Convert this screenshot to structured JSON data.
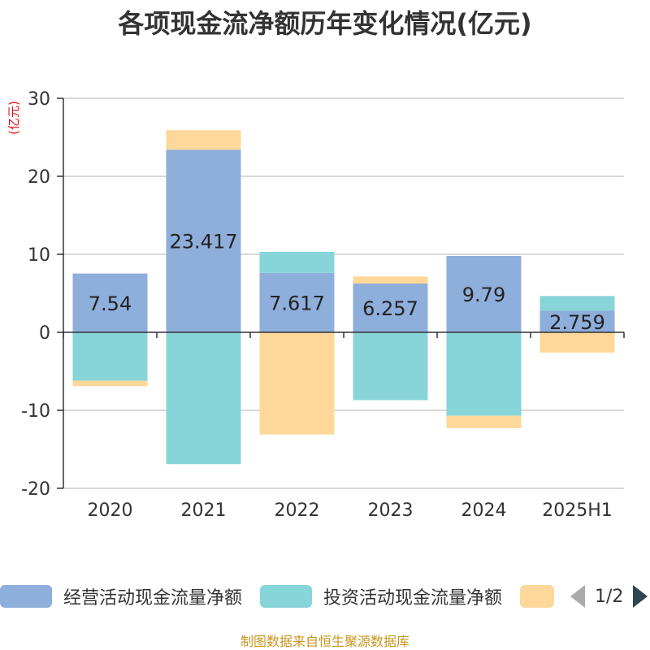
{
  "page_title": "各项现金流净额历年变化情况(亿元)",
  "chart_data": {
    "type": "bar",
    "stacked": true,
    "title": "各项现金流净额历年变化情况(亿元)",
    "ylabel": "(亿元)",
    "ylim": [
      -20,
      30
    ],
    "yticks": [
      -20,
      -10,
      0,
      10,
      20,
      30
    ],
    "grid": true,
    "legend_position": "bottom",
    "categories": [
      "2020",
      "2021",
      "2022",
      "2023",
      "2024",
      "2025H1"
    ],
    "series": [
      {
        "name": "经营活动现金流量净额",
        "color": "#8eaedb",
        "values": [
          7.54,
          23.417,
          7.617,
          6.257,
          9.79,
          2.759
        ],
        "labels": [
          "7.54",
          "23.417",
          "7.617",
          "6.257",
          "9.79",
          "2.759"
        ]
      },
      {
        "name": "投资活动现金流量净额",
        "color": "#87d5d8",
        "values": [
          -6.2,
          -16.9,
          2.7,
          -8.7,
          -10.7,
          1.9
        ]
      },
      {
        "name": "",
        "color": "#fdd89a",
        "values": [
          -0.7,
          2.5,
          -13.1,
          0.9,
          -1.6,
          -2.6
        ]
      }
    ]
  },
  "legend": {
    "items": [
      {
        "label": "经营活动现金流量净额",
        "color": "#8eaedb"
      },
      {
        "label": "投资活动现金流量净额",
        "color": "#87d5d8"
      },
      {
        "label": "",
        "color": "#fdd89a"
      }
    ],
    "pager_text": "1/2"
  },
  "footer": {
    "source": "制图数据来自恒生聚源数据库"
  }
}
